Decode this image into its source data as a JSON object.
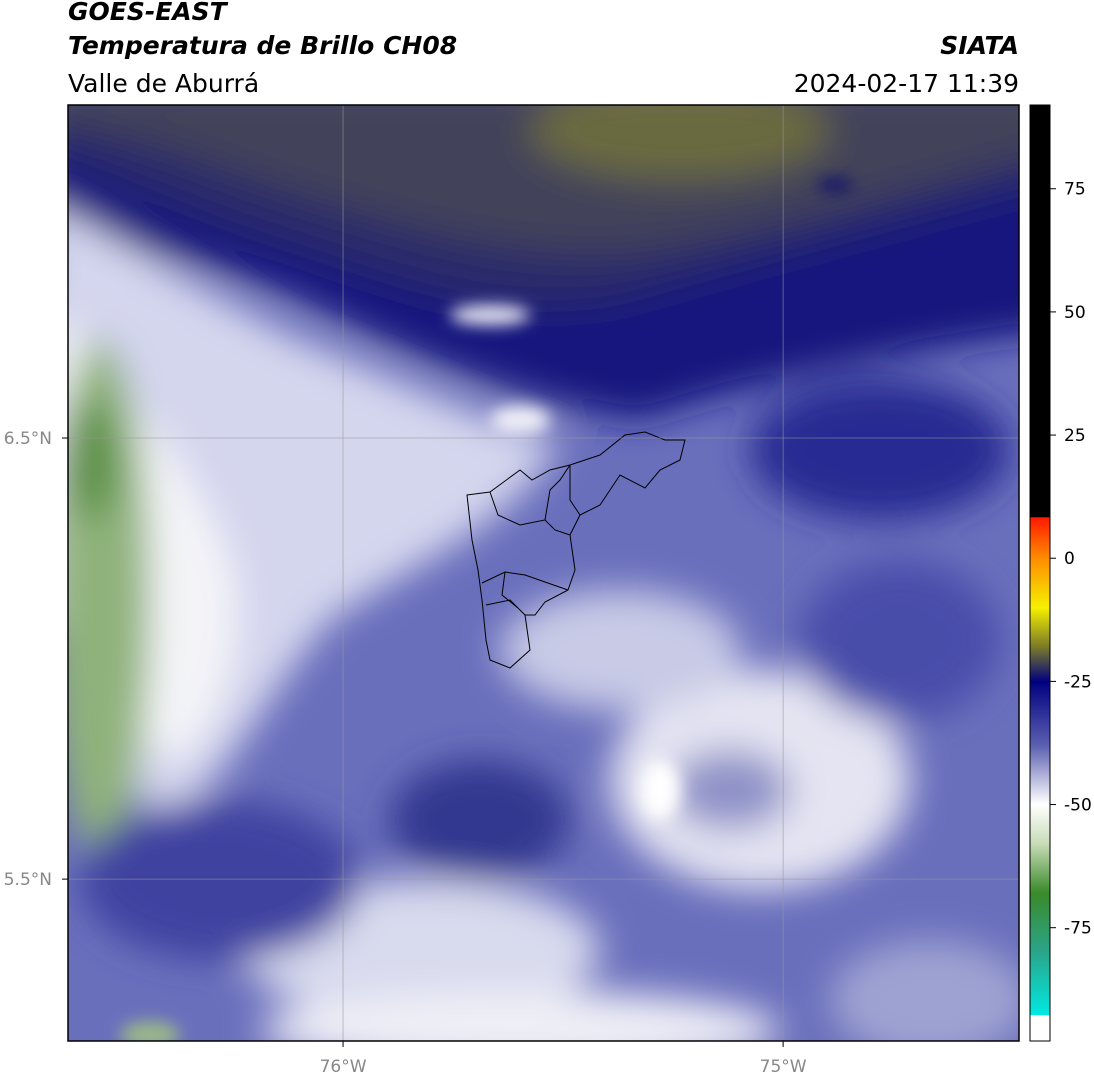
{
  "header": {
    "source": "GOES-EAST",
    "product": "Temperatura de Brillo CH08",
    "region": "Valle de Aburrá",
    "agency": "SIATA",
    "timestamp": "2024-02-17 11:39"
  },
  "map": {
    "xlim": [
      -76.625,
      -74.464
    ],
    "ylim": [
      5.133,
      7.255
    ],
    "xticks": [
      {
        "value": -76,
        "label": "76°W"
      },
      {
        "value": -75,
        "label": "75°W"
      }
    ],
    "yticks": [
      {
        "value": 6.5,
        "label": "6.5°N"
      },
      {
        "value": 5.5,
        "label": "5.5°N"
      }
    ],
    "grid": true
  },
  "colorbar": {
    "lim": [
      -98,
      92
    ],
    "ticks": [
      75,
      50,
      25,
      0,
      -25,
      -50,
      -75
    ]
  }
}
